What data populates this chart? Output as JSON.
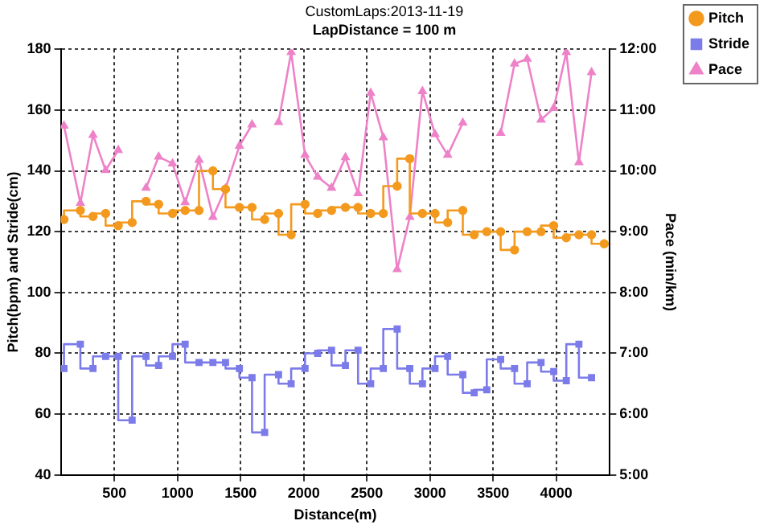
{
  "chart_data": {
    "type": "step",
    "title": "CustomLaps:2013-11-19",
    "subtitle": "LapDistance = 100 m",
    "xlabel": "Distance(m)",
    "ylabel": "Pitch(bpm) and Stride(cm)",
    "y2label": "Pace (min/km)",
    "x": [
      100,
      230,
      330,
      430,
      530,
      640,
      750,
      850,
      960,
      1060,
      1170,
      1280,
      1380,
      1490,
      1590,
      1690,
      1800,
      1900,
      2010,
      2110,
      2220,
      2330,
      2430,
      2530,
      2630,
      2740,
      2840,
      2940,
      3040,
      3140,
      3260,
      3350,
      3450,
      3560,
      3670,
      3770,
      3880,
      3980,
      4080,
      4180,
      4280,
      4380
    ],
    "series": [
      {
        "name": "Pitch",
        "marker": "circle",
        "color": "#f39a1e",
        "values": [
          124,
          127,
          125,
          126,
          122,
          123,
          130,
          129,
          126,
          127,
          127,
          140,
          134,
          128,
          128,
          124,
          126,
          119,
          129,
          126,
          127,
          128,
          128,
          126,
          126,
          135,
          144,
          126,
          126,
          123,
          127,
          119,
          120,
          120,
          114,
          120,
          120,
          122,
          118,
          119,
          119,
          116
        ]
      },
      {
        "name": "Stride",
        "marker": "square",
        "color": "#7b7bea",
        "values": [
          75,
          83,
          75,
          79,
          79,
          58,
          79,
          76,
          79,
          83,
          77,
          77,
          77,
          75,
          72,
          54,
          73,
          70,
          75,
          80,
          81,
          76,
          81,
          70,
          75,
          88,
          75,
          70,
          75,
          79,
          73,
          67,
          68,
          78,
          75,
          70,
          77,
          74,
          71,
          83,
          72,
          null
        ]
      },
      {
        "name": "Pace",
        "type": "line",
        "axis": "y2",
        "marker": "triangle",
        "color": "#ee82c8",
        "values": [
          10.74,
          9.47,
          10.59,
          10.01,
          10.34,
          null,
          9.72,
          10.23,
          10.12,
          9.48,
          10.18,
          9.24,
          9.71,
          10.41,
          10.76,
          null,
          10.8,
          11.95,
          10.26,
          9.9,
          9.72,
          10.22,
          9.63,
          11.28,
          10.55,
          8.38,
          9.24,
          11.31,
          10.6,
          10.26,
          10.79,
          null,
          null,
          10.62,
          11.76,
          11.84,
          10.84,
          11.03,
          11.95,
          10.14,
          11.62,
          null
        ]
      }
    ],
    "xlim": [
      75,
      4425
    ],
    "xticks": [
      500,
      1000,
      1500,
      2000,
      2500,
      3000,
      3500,
      4000
    ],
    "ylim": [
      40,
      180
    ],
    "yticks": [
      40,
      60,
      80,
      100,
      120,
      140,
      160,
      180
    ],
    "y2lim": [
      5,
      12
    ],
    "y2ticks": [
      {
        "value": 5,
        "label": "5:00"
      },
      {
        "value": 6,
        "label": "6:00"
      },
      {
        "value": 7,
        "label": "7:00"
      },
      {
        "value": 8,
        "label": "8:00"
      },
      {
        "value": 9,
        "label": "9:00"
      },
      {
        "value": 10,
        "label": "10:00"
      },
      {
        "value": 11,
        "label": "11:00"
      },
      {
        "value": 12,
        "label": "12:00"
      }
    ],
    "grid": true,
    "legend": "top right",
    "line_style": "solid"
  }
}
